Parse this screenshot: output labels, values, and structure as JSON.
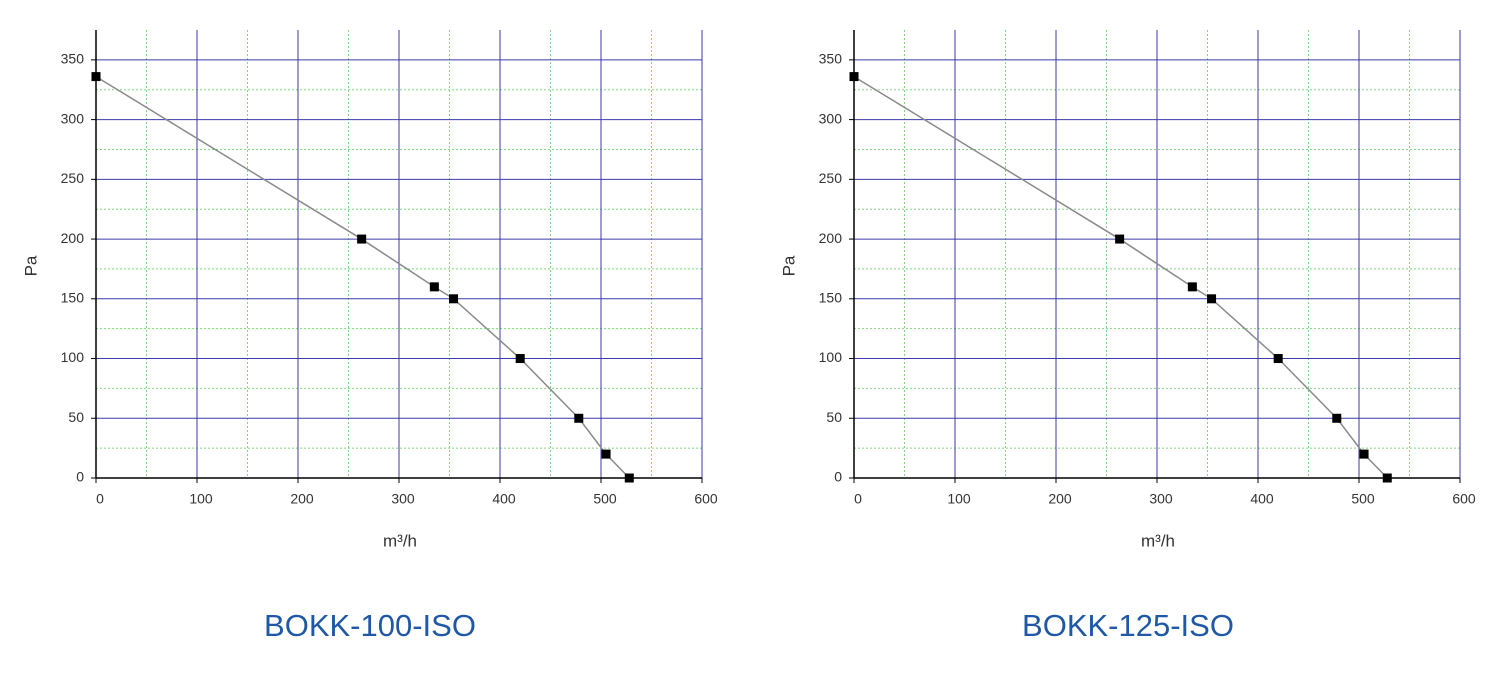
{
  "chart_data": [
    {
      "type": "line",
      "title": "BOKK-100-ISO",
      "xlabel": "m³/h",
      "ylabel": "Pa",
      "x": [
        0,
        263,
        335,
        354,
        420,
        478,
        505,
        528
      ],
      "values": [
        336,
        200,
        160,
        150,
        100,
        50,
        20,
        0
      ],
      "color": "#8a8a8a",
      "marker_color": "#000000",
      "xlim": [
        0,
        600
      ],
      "ylim": [
        0,
        375
      ],
      "xticks": [
        0,
        100,
        200,
        300,
        400,
        500,
        600
      ],
      "yticks": [
        0,
        50,
        100,
        150,
        200,
        250,
        300,
        350
      ],
      "xminor": [
        50,
        150,
        250,
        350,
        450,
        550
      ],
      "yminor": [
        25,
        75,
        125,
        175,
        225,
        275,
        325
      ],
      "grid": true,
      "grid_color": "#3b3ba8",
      "minor_grid_color": "#7fd87f"
    },
    {
      "type": "line",
      "title": "BOKK-125-ISO",
      "xlabel": "m³/h",
      "ylabel": "Pa",
      "x": [
        0,
        263,
        335,
        354,
        420,
        478,
        505,
        528
      ],
      "values": [
        336,
        200,
        160,
        150,
        100,
        50,
        20,
        0
      ],
      "color": "#8a8a8a",
      "marker_color": "#000000",
      "xlim": [
        0,
        600
      ],
      "ylim": [
        0,
        375
      ],
      "xticks": [
        0,
        100,
        200,
        300,
        400,
        500,
        600
      ],
      "yticks": [
        0,
        50,
        100,
        150,
        200,
        250,
        300,
        350
      ],
      "xminor": [
        50,
        150,
        250,
        350,
        450,
        550
      ],
      "yminor": [
        25,
        75,
        125,
        175,
        225,
        275,
        325
      ],
      "grid": true,
      "grid_color": "#3b3ba8",
      "minor_grid_color": "#7fd87f"
    }
  ]
}
